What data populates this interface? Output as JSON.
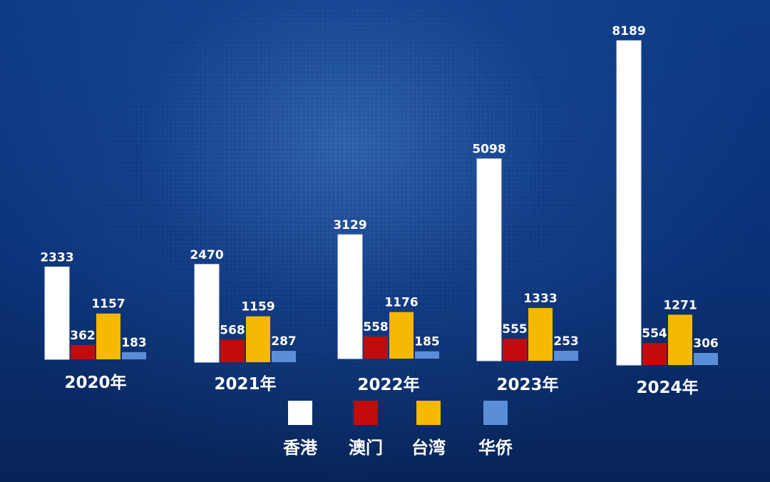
{
  "chart_data": {
    "type": "bar",
    "title": "",
    "xlabel": "",
    "ylabel": "",
    "categories": [
      "2020年",
      "2021年",
      "2022年",
      "2023年",
      "2024年"
    ],
    "series": [
      {
        "name": "香港",
        "color": "#ffffff",
        "values": [
          2333,
          2470,
          3129,
          5098,
          8189
        ]
      },
      {
        "name": "澳门",
        "color": "#c20c0c",
        "values": [
          362,
          568,
          558,
          555,
          554
        ]
      },
      {
        "name": "台湾",
        "color": "#f6b800",
        "values": [
          1157,
          1159,
          1176,
          1333,
          1271
        ]
      },
      {
        "name": "华侨",
        "color": "#5b8ed8",
        "values": [
          183,
          287,
          185,
          253,
          306
        ]
      }
    ],
    "ylim": [
      0,
      9000
    ],
    "grid": false,
    "legend_position": "bottom"
  }
}
